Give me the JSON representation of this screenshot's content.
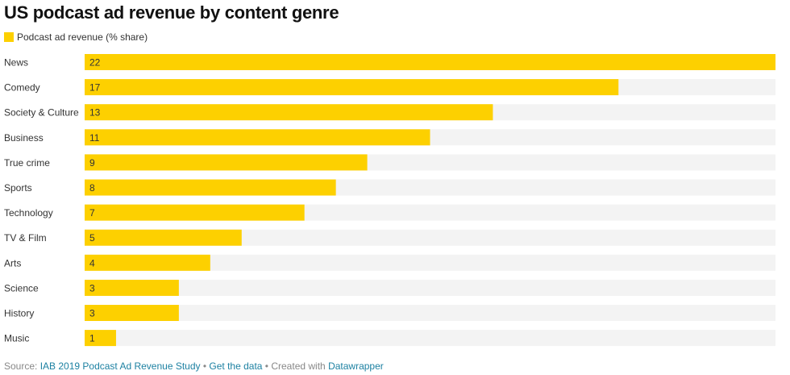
{
  "title": "US podcast ad revenue by content genre",
  "legend": {
    "label": "Podcast ad revenue (% share)"
  },
  "colors": {
    "bar": "#fdd000",
    "track": "#f3f3f3",
    "text": "#333333",
    "link": "#1d81a2"
  },
  "footer": {
    "source_prefix": "Source:",
    "source_link": "IAB 2019 Podcast Ad Revenue Study",
    "sep1": "•",
    "data_link": "Get the data",
    "sep2": "•",
    "created_text": "Created with",
    "tool_link": "Datawrapper"
  },
  "chart_data": {
    "type": "bar",
    "orientation": "horizontal",
    "series": [
      {
        "name": "Podcast ad revenue (% share)",
        "values": [
          22,
          17,
          13,
          11,
          9,
          8,
          7,
          5,
          4,
          3,
          3,
          1
        ]
      }
    ],
    "categories": [
      "News",
      "Comedy",
      "Society & Culture",
      "Business",
      "True crime",
      "Sports",
      "Technology",
      "TV & Film",
      "Arts",
      "Science",
      "History",
      "Music"
    ],
    "values": [
      22,
      17,
      13,
      11,
      9,
      8,
      7,
      5,
      4,
      3,
      3,
      1
    ],
    "xlim": [
      0,
      22
    ],
    "title": "US podcast ad revenue by content genre",
    "xlabel": "",
    "ylabel": "",
    "grid": false,
    "legend_position": "top-left"
  }
}
